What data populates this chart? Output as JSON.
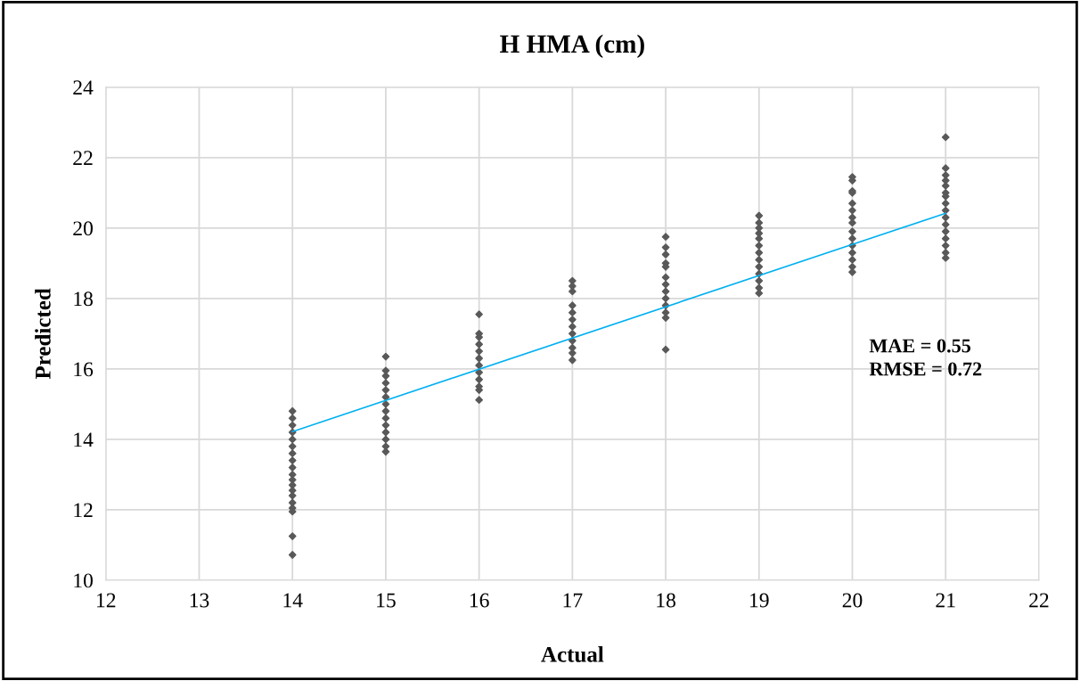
{
  "chart_data": {
    "type": "scatter",
    "title": "H HMA (cm)",
    "xlabel": "Actual",
    "ylabel": "Predicted",
    "xlim": [
      12,
      22
    ],
    "xticks": [
      12,
      13,
      14,
      15,
      16,
      17,
      18,
      19,
      20,
      21,
      22
    ],
    "ylim": [
      10,
      24
    ],
    "yticks": [
      10,
      12,
      14,
      16,
      18,
      20,
      22,
      24
    ],
    "grid": true,
    "annotations": [
      "MAE = 0.55",
      "RMSE = 0.72"
    ],
    "series": [
      {
        "color": "#595959",
        "marker": "diamond",
        "x": [
          14,
          14,
          14,
          14,
          14,
          14,
          14,
          14,
          14,
          14,
          14,
          14,
          14,
          14,
          14,
          14,
          14,
          14,
          14,
          15,
          15,
          15,
          15,
          15,
          15,
          15,
          15,
          15,
          15,
          15,
          15,
          15,
          15,
          16,
          16,
          16,
          16,
          16,
          16,
          16,
          16,
          16,
          16,
          16,
          16,
          17,
          17,
          17,
          17,
          17,
          17,
          17,
          17,
          17,
          17,
          17,
          17,
          18,
          18,
          18,
          18,
          18,
          18,
          18,
          18,
          18,
          18,
          18,
          18,
          18,
          19,
          19,
          19,
          19,
          19,
          19,
          19,
          19,
          19,
          19,
          19,
          19,
          19,
          20,
          20,
          20,
          20,
          20,
          20,
          20,
          20,
          20,
          20,
          20,
          20,
          20,
          20,
          20,
          21,
          21,
          21,
          21,
          21,
          21,
          21,
          21,
          21,
          21,
          21,
          21,
          21,
          21,
          21,
          21
        ],
        "values": [
          14.8,
          14.6,
          14.4,
          14.2,
          14.0,
          13.8,
          13.6,
          13.4,
          13.2,
          13.0,
          12.85,
          12.7,
          12.55,
          12.4,
          12.2,
          12.05,
          11.95,
          11.25,
          10.72,
          13.65,
          13.8,
          14.0,
          14.2,
          14.4,
          14.6,
          14.8,
          15.0,
          15.2,
          15.4,
          15.6,
          15.8,
          15.95,
          16.35,
          15.12,
          15.4,
          15.5,
          15.7,
          15.9,
          16.1,
          16.3,
          16.5,
          16.7,
          16.9,
          17.0,
          17.55,
          16.25,
          16.45,
          16.6,
          16.8,
          17.0,
          17.2,
          17.4,
          17.6,
          17.8,
          18.2,
          18.35,
          18.5,
          16.55,
          17.45,
          17.6,
          17.8,
          18.0,
          18.2,
          18.4,
          18.6,
          18.9,
          19.0,
          19.25,
          19.45,
          19.75,
          18.15,
          18.3,
          18.5,
          18.7,
          18.9,
          19.1,
          19.3,
          19.5,
          19.7,
          19.85,
          20.0,
          20.15,
          20.35,
          18.75,
          18.9,
          19.1,
          19.3,
          19.5,
          19.7,
          19.9,
          20.15,
          20.3,
          20.5,
          20.7,
          21.0,
          21.05,
          21.35,
          21.45,
          19.15,
          19.3,
          19.5,
          19.7,
          19.9,
          20.1,
          20.3,
          20.5,
          20.7,
          20.9,
          21.0,
          21.2,
          21.35,
          21.5,
          21.7,
          22.58
        ]
      },
      {
        "type": "line",
        "color": "#00b0f0",
        "line_style": "solid",
        "x": [
          14,
          21
        ],
        "values": [
          14.22,
          20.42
        ]
      }
    ]
  }
}
